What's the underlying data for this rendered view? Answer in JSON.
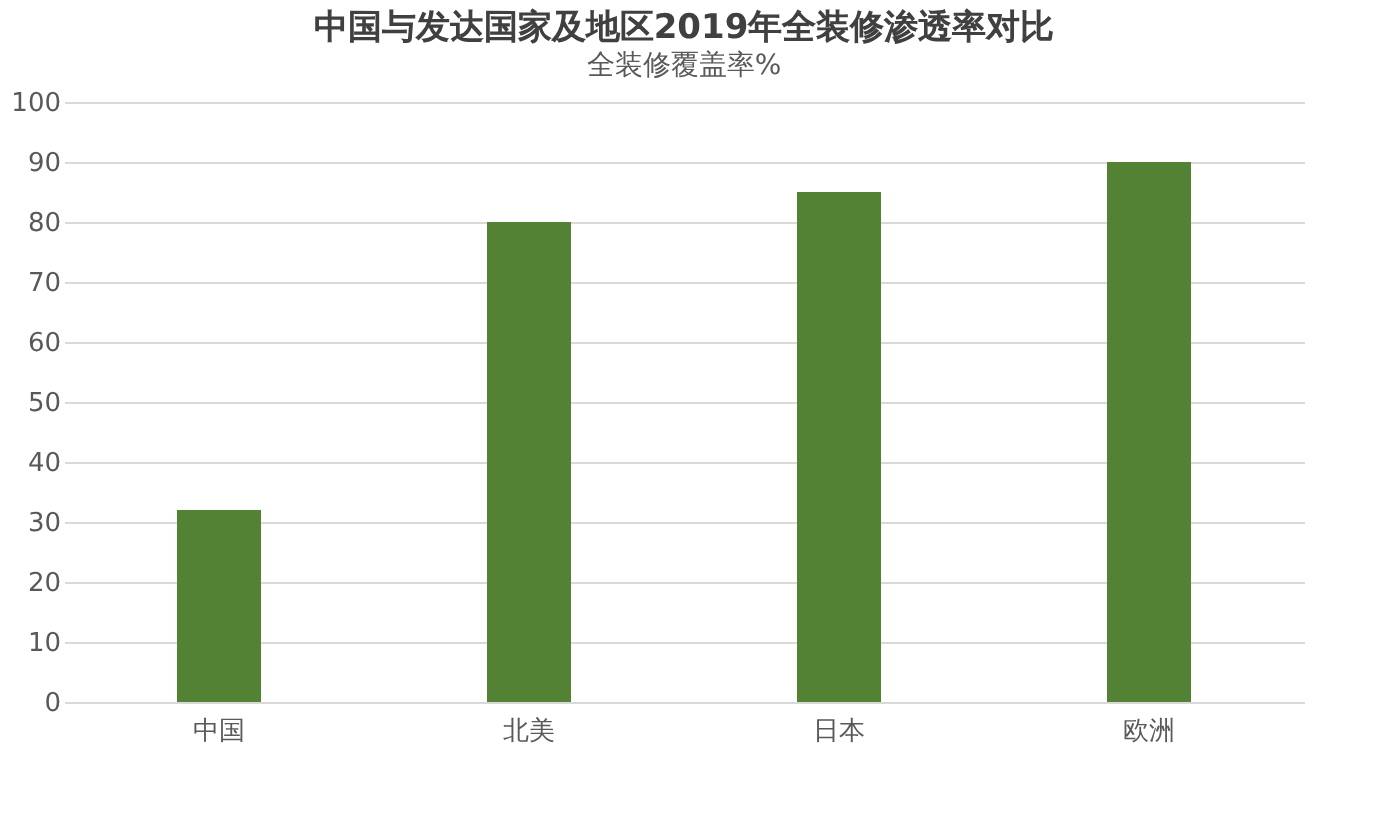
{
  "chart_data": {
    "type": "bar",
    "title": "中国与发达国家及地区2019年全装修渗透率对比",
    "subtitle": "全装修覆盖率%",
    "categories": [
      "中国",
      "北美",
      "日本",
      "欧洲"
    ],
    "values": [
      32,
      80,
      85,
      90
    ],
    "color": "#548235",
    "ylim": [
      0,
      100
    ],
    "yticks": [
      0,
      10,
      20,
      30,
      40,
      50,
      60,
      70,
      80,
      90,
      100
    ],
    "grid": "y"
  }
}
